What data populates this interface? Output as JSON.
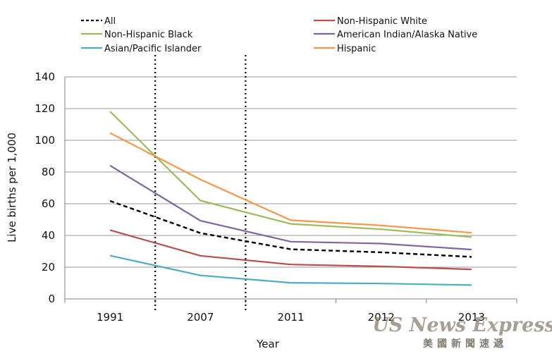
{
  "chart_data": {
    "type": "line",
    "title": "",
    "xlabel": "Year",
    "ylabel": "Live births per 1,000",
    "categories": [
      "1991",
      "2007",
      "2011",
      "2012",
      "2013"
    ],
    "ylim": [
      0,
      140
    ],
    "yticks": [
      0,
      20,
      40,
      60,
      80,
      100,
      120,
      140
    ],
    "grid": "horizontal",
    "legend_position": "top",
    "series": [
      {
        "name": "All",
        "color": "#000000",
        "dash": "dashed",
        "values": [
          61.8,
          41.5,
          31.3,
          29.4,
          26.5
        ]
      },
      {
        "name": "Non-Hispanic White",
        "color": "#b5504c",
        "dash": "solid",
        "values": [
          43.4,
          27.2,
          21.7,
          20.5,
          18.6
        ]
      },
      {
        "name": "Non-Hispanic Black",
        "color": "#9bbb59",
        "dash": "solid",
        "values": [
          118.2,
          62.0,
          47.3,
          43.9,
          39.0
        ]
      },
      {
        "name": "American Indian/Alaska Native",
        "color": "#8064a2",
        "dash": "solid",
        "values": [
          84.1,
          49.3,
          36.1,
          34.9,
          31.1
        ]
      },
      {
        "name": "Asian/Pacific Islander",
        "color": "#4bacc6",
        "dash": "solid",
        "values": [
          27.3,
          14.8,
          10.2,
          9.7,
          8.7
        ]
      },
      {
        "name": "Hispanic",
        "color": "#f79646",
        "dash": "solid",
        "values": [
          104.6,
          75.3,
          49.6,
          46.3,
          41.7
        ]
      }
    ],
    "annotations": [
      {
        "type": "vertical-dotted-line",
        "between": [
          "1991",
          "2007"
        ]
      },
      {
        "type": "vertical-dotted-line",
        "between": [
          "2007",
          "2011"
        ]
      }
    ]
  },
  "watermark": {
    "latin": "US News Express",
    "cjk": "美國新聞速遞"
  }
}
